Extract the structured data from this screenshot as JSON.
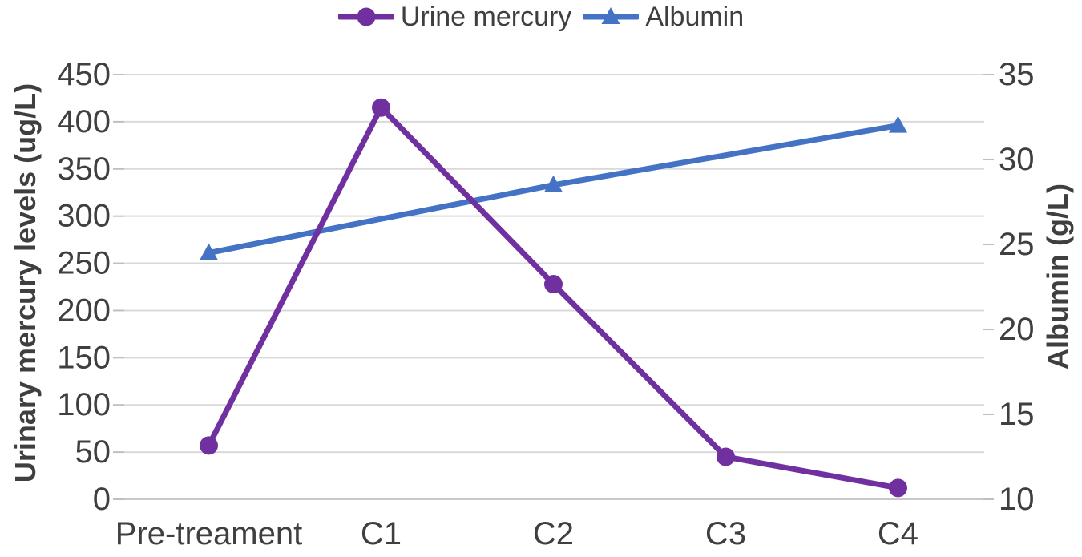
{
  "chart_data": {
    "type": "line",
    "title": "",
    "categories": [
      "Pre-treament",
      "C1",
      "C2",
      "C3",
      "C4"
    ],
    "series": [
      {
        "name": "Urine mercury",
        "axis": "left",
        "color": "#7030A0",
        "marker": "circle",
        "x": [
          0,
          1,
          2,
          3,
          4
        ],
        "values": [
          57,
          415,
          228,
          45,
          12
        ]
      },
      {
        "name": "Albumin",
        "axis": "right",
        "color": "#4472C4",
        "marker": "triangle",
        "x": [
          0,
          2,
          4
        ],
        "values": [
          24.5,
          28.5,
          32
        ]
      }
    ],
    "left_axis": {
      "label": "Urinary mercury levels (ug/L)",
      "min": 0,
      "max": 450,
      "step": 50,
      "ticks": [
        450,
        400,
        350,
        300,
        250,
        200,
        150,
        100,
        50,
        0
      ]
    },
    "right_axis": {
      "label": "Albumin (g/L)",
      "min": 10,
      "max": 35,
      "step": 5,
      "ticks": [
        35,
        30,
        25,
        20,
        15,
        10
      ]
    },
    "legend": {
      "position": "top",
      "items": [
        "Urine mercury",
        "Albumin"
      ]
    },
    "grid": true,
    "colors": {
      "background": "#FFFFFF",
      "gridline": "#D9D9D9",
      "axis_line": "#C9C9C9",
      "tick_mark": "#BFBFBF",
      "text": "#3F3F3F"
    }
  }
}
